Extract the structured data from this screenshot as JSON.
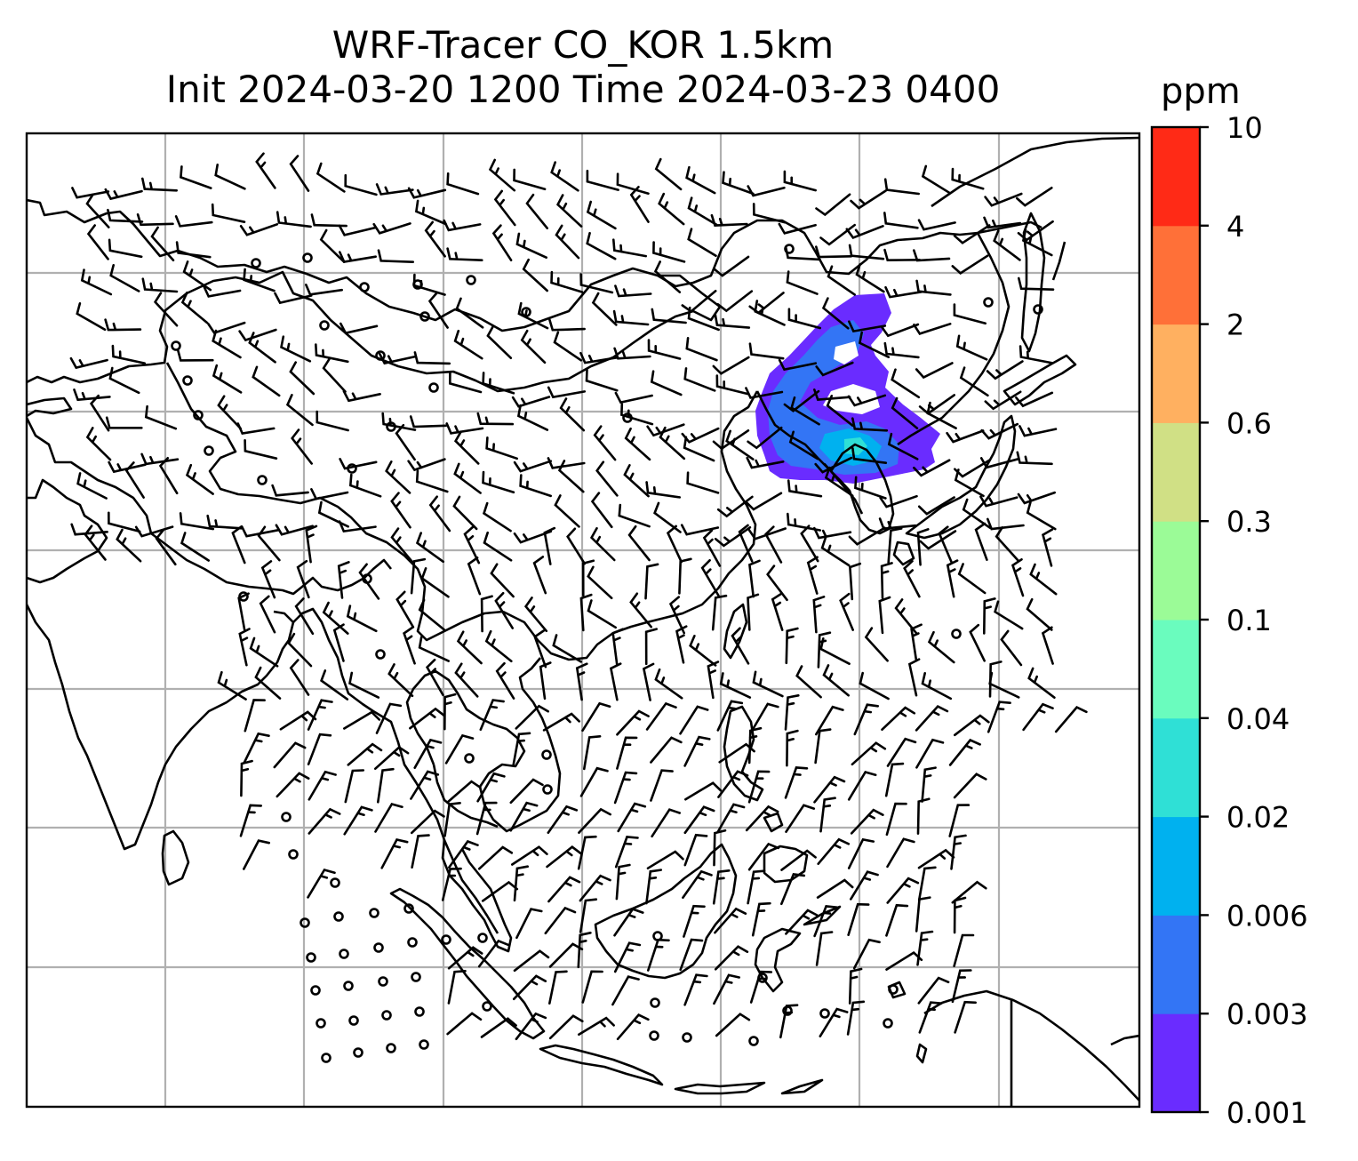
{
  "title": {
    "line1": "WRF-Tracer CO_KOR 1.5km",
    "line2": "Init 2024-03-20 1200 Time 2024-03-23 0400"
  },
  "colorbar": {
    "unit": "ppm",
    "levels": [
      {
        "label": "0.001",
        "color": "#6a2cff"
      },
      {
        "label": "0.003",
        "color": "#3375f5"
      },
      {
        "label": "0.006",
        "color": "#00b1ef"
      },
      {
        "label": "0.02",
        "color": "#2fe0d6"
      },
      {
        "label": "0.04",
        "color": "#6afcbe"
      },
      {
        "label": "0.1",
        "color": "#9bfb97"
      },
      {
        "label": "0.3",
        "color": "#d0e085"
      },
      {
        "label": "0.6",
        "color": "#ffb060"
      },
      {
        "label": "2",
        "color": "#ff7038"
      },
      {
        "label": "4",
        "color": "#ff2a16"
      },
      {
        "label": "10",
        "color": ""
      }
    ]
  },
  "map": {
    "gridlines": true,
    "coastline_color": "#000000",
    "gridline_color": "#b0b0b0",
    "wind_barbs": true,
    "tracer_plume": {
      "region": "Korea / Northeast China",
      "max_level": "0.02"
    }
  }
}
